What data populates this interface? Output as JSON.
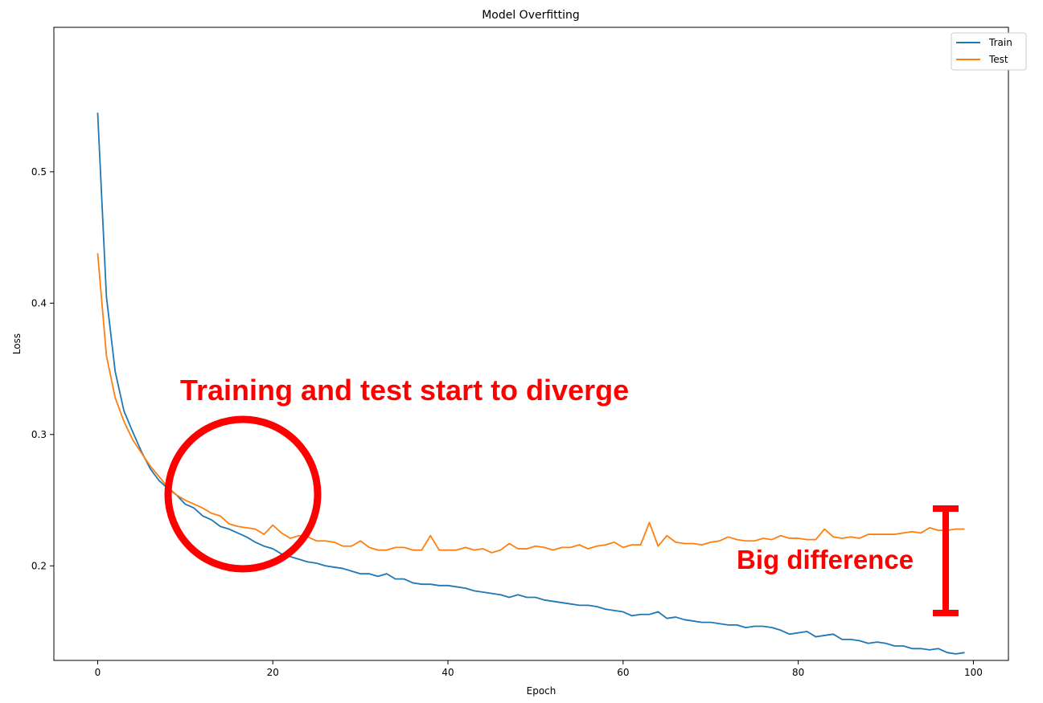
{
  "chart_data": {
    "type": "line",
    "title": "Model Overfitting",
    "xlabel": "Epoch",
    "ylabel": "Loss",
    "xlim": [
      -5,
      104
    ],
    "ylim": [
      0.128,
      0.61
    ],
    "x_ticks": [
      0,
      20,
      40,
      60,
      80,
      100
    ],
    "y_ticks": [
      0.2,
      0.3,
      0.4,
      0.5
    ],
    "legend_position": "top-right",
    "colors": {
      "train": "#1f77b4",
      "test": "#ff7f0e",
      "annotation": "#ff0000"
    },
    "series": [
      {
        "name": "Train",
        "values": [
          0.545,
          0.405,
          0.348,
          0.318,
          0.302,
          0.287,
          0.274,
          0.265,
          0.259,
          0.254,
          0.247,
          0.244,
          0.238,
          0.235,
          0.23,
          0.228,
          0.225,
          0.222,
          0.218,
          0.215,
          0.213,
          0.209,
          0.207,
          0.205,
          0.203,
          0.202,
          0.2,
          0.199,
          0.198,
          0.196,
          0.194,
          0.194,
          0.192,
          0.194,
          0.19,
          0.19,
          0.187,
          0.186,
          0.186,
          0.185,
          0.185,
          0.184,
          0.183,
          0.181,
          0.18,
          0.179,
          0.178,
          0.176,
          0.178,
          0.176,
          0.176,
          0.174,
          0.173,
          0.172,
          0.171,
          0.17,
          0.17,
          0.169,
          0.167,
          0.166,
          0.165,
          0.162,
          0.163,
          0.163,
          0.165,
          0.16,
          0.161,
          0.159,
          0.158,
          0.157,
          0.157,
          0.156,
          0.155,
          0.155,
          0.153,
          0.154,
          0.154,
          0.153,
          0.151,
          0.148,
          0.149,
          0.15,
          0.146,
          0.147,
          0.148,
          0.144,
          0.144,
          0.143,
          0.141,
          0.142,
          0.141,
          0.139,
          0.139,
          0.137,
          0.137,
          0.136,
          0.137,
          0.134,
          0.133,
          0.134
        ]
      },
      {
        "name": "Test",
        "values": [
          0.438,
          0.36,
          0.328,
          0.31,
          0.296,
          0.286,
          0.276,
          0.268,
          0.26,
          0.254,
          0.25,
          0.247,
          0.244,
          0.24,
          0.238,
          0.232,
          0.23,
          0.229,
          0.228,
          0.224,
          0.231,
          0.225,
          0.221,
          0.223,
          0.222,
          0.219,
          0.219,
          0.218,
          0.215,
          0.215,
          0.219,
          0.214,
          0.212,
          0.212,
          0.214,
          0.214,
          0.212,
          0.212,
          0.223,
          0.212,
          0.212,
          0.212,
          0.214,
          0.212,
          0.213,
          0.21,
          0.212,
          0.217,
          0.213,
          0.213,
          0.215,
          0.214,
          0.212,
          0.214,
          0.214,
          0.216,
          0.213,
          0.215,
          0.216,
          0.218,
          0.214,
          0.216,
          0.216,
          0.233,
          0.215,
          0.223,
          0.218,
          0.217,
          0.217,
          0.216,
          0.218,
          0.219,
          0.222,
          0.22,
          0.219,
          0.219,
          0.221,
          0.22,
          0.223,
          0.221,
          0.221,
          0.22,
          0.22,
          0.228,
          0.222,
          0.221,
          0.222,
          0.221,
          0.224,
          0.224,
          0.224,
          0.224,
          0.225,
          0.226,
          0.225,
          0.229,
          0.227,
          0.227,
          0.228,
          0.228
        ]
      }
    ],
    "annotations": [
      {
        "text": "Training and test start to diverge"
      },
      {
        "text": "Big difference"
      }
    ]
  }
}
